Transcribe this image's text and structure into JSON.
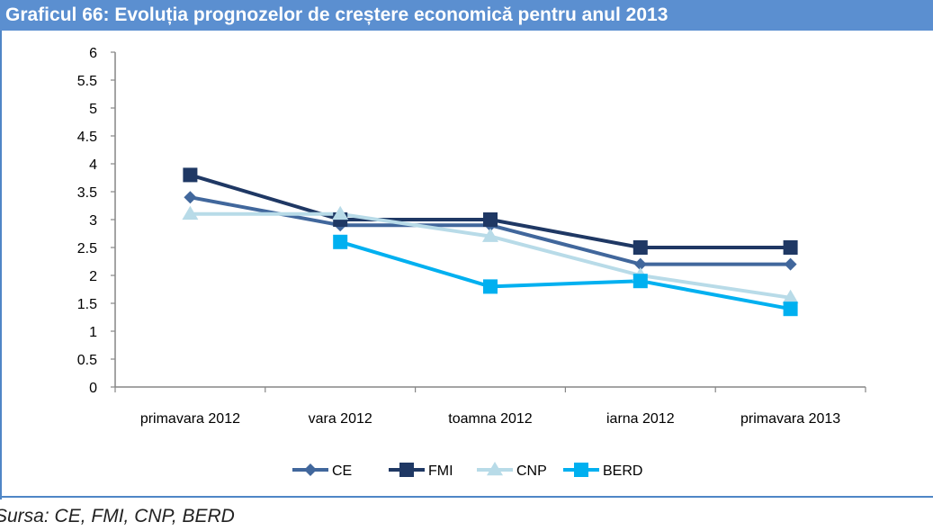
{
  "title": "Graficul 66:  Evoluția prognozelor de creștere economică pentru anul 2013",
  "source": "Sursa: CE, FMI, CNP, BERD",
  "colors": {
    "header": "#5b8fd0",
    "axis": "#868686"
  },
  "chart_data": {
    "type": "line",
    "title": "",
    "xlabel": "",
    "ylabel": "",
    "ylim": [
      0,
      6
    ],
    "y_ticks": [
      "0",
      "0.5",
      "1",
      "1.5",
      "2",
      "2.5",
      "3",
      "3.5",
      "4",
      "4.5",
      "5",
      "5.5",
      "6"
    ],
    "categories": [
      "primavara 2012",
      "vara 2012",
      "toamna 2012",
      "iarna 2012",
      "primavara 2013"
    ],
    "grid": false,
    "legend_position": "bottom",
    "series": [
      {
        "name": "CE",
        "color": "#41679c",
        "marker": "diamond",
        "values": [
          3.4,
          2.9,
          2.9,
          2.2,
          2.2
        ]
      },
      {
        "name": "FMI",
        "color": "#1f3864",
        "marker": "square",
        "values": [
          3.8,
          3.0,
          3.0,
          2.5,
          2.5
        ]
      },
      {
        "name": "CNP",
        "color": "#b8dbe8",
        "marker": "triangle",
        "values": [
          3.1,
          3.1,
          2.7,
          2.0,
          1.6
        ]
      },
      {
        "name": "BERD",
        "color": "#00b0f0",
        "marker": "square",
        "values": [
          null,
          2.6,
          1.8,
          1.9,
          1.4
        ]
      }
    ]
  }
}
